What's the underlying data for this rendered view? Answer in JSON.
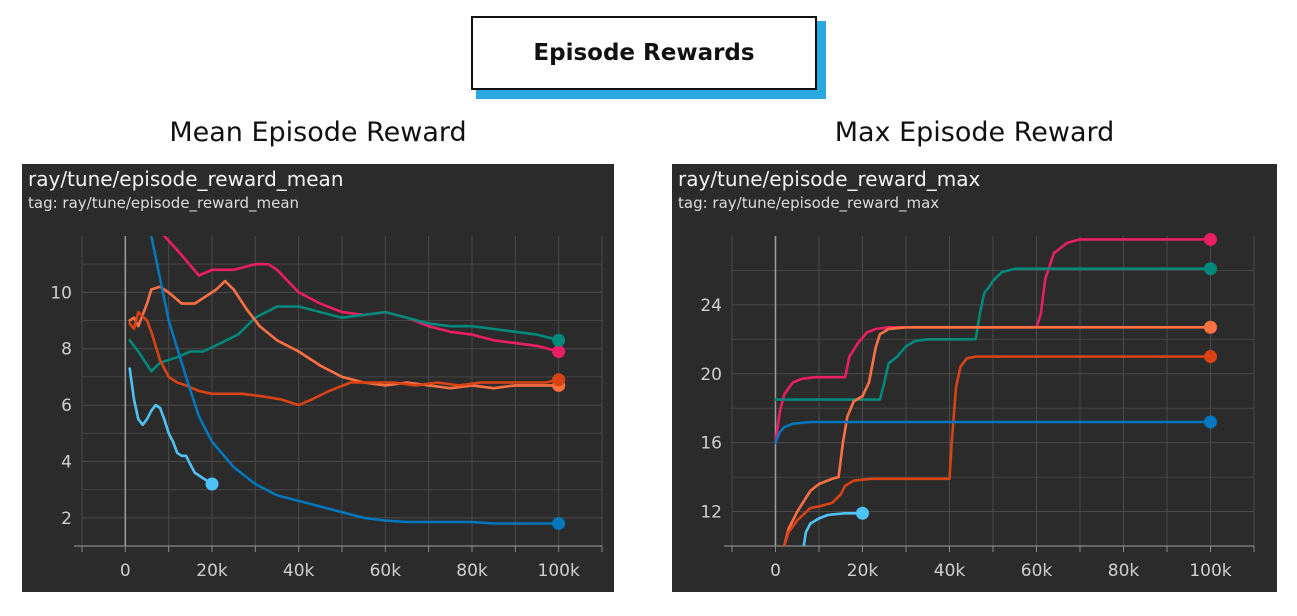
{
  "header": {
    "title": "Episode Rewards"
  },
  "charts": [
    {
      "subtitle": "Mean Episode Reward",
      "panel_title": "ray/tune/episode_reward_mean",
      "panel_tag": "tag: ray/tune/episode_reward_mean"
    },
    {
      "subtitle": "Max Episode Reward",
      "panel_title": "ray/tune/episode_reward_max",
      "panel_tag": "tag: ray/tune/episode_reward_max"
    }
  ],
  "chart_data": [
    {
      "type": "line",
      "title": "ray/tune/episode_reward_mean",
      "xlim": [
        -10000,
        110000
      ],
      "ylim": [
        1,
        12
      ],
      "xticks": [
        0,
        20000,
        40000,
        60000,
        80000,
        100000
      ],
      "xtick_labels": [
        "0",
        "20k",
        "40k",
        "60k",
        "80k",
        "100k"
      ],
      "yticks": [
        2,
        4,
        6,
        8,
        10
      ],
      "ytick_labels": [
        "2",
        "4",
        "6",
        "8",
        "10"
      ],
      "grid": true,
      "series": [
        {
          "color": "#e91e63",
          "x": [
            9000,
            12000,
            17000,
            20000,
            25000,
            30000,
            33000,
            35000,
            40000,
            45000,
            50000,
            55000,
            60000,
            65000,
            70000,
            75000,
            80000,
            85000,
            90000,
            95000,
            100000
          ],
          "y": [
            12,
            11.5,
            10.6,
            10.8,
            10.8,
            11,
            11,
            10.8,
            10,
            9.6,
            9.3,
            9.2,
            9.3,
            9.1,
            8.8,
            8.6,
            8.5,
            8.3,
            8.2,
            8.1,
            7.9
          ]
        },
        {
          "color": "#00897b",
          "x": [
            1000,
            3000,
            6000,
            8000,
            12000,
            15000,
            18000,
            22000,
            26000,
            30000,
            35000,
            40000,
            45000,
            50000,
            55000,
            60000,
            65000,
            70000,
            75000,
            80000,
            85000,
            90000,
            95000,
            100000
          ],
          "y": [
            8.3,
            7.9,
            7.2,
            7.5,
            7.7,
            7.9,
            7.9,
            8.2,
            8.5,
            9.1,
            9.5,
            9.5,
            9.3,
            9.1,
            9.2,
            9.3,
            9.1,
            8.9,
            8.8,
            8.8,
            8.7,
            8.6,
            8.5,
            8.3
          ]
        },
        {
          "color": "#ff7043",
          "x": [
            1000,
            2000,
            3000,
            5000,
            6000,
            8000,
            10000,
            13000,
            16000,
            19000,
            21000,
            23000,
            25000,
            28000,
            31000,
            35000,
            40000,
            45000,
            50000,
            55000,
            60000,
            65000,
            70000,
            75000,
            80000,
            85000,
            90000,
            95000,
            100000
          ],
          "y": [
            9,
            9.1,
            8.8,
            9.6,
            10.1,
            10.2,
            10.0,
            9.6,
            9.6,
            9.9,
            10.1,
            10.4,
            10.1,
            9.4,
            8.8,
            8.3,
            7.9,
            7.4,
            7.0,
            6.8,
            6.7,
            6.8,
            6.7,
            6.6,
            6.7,
            6.6,
            6.7,
            6.7,
            6.7
          ]
        },
        {
          "color": "#d84315",
          "x": [
            1000,
            2000,
            3000,
            5000,
            6000,
            8000,
            10000,
            12000,
            14000,
            17000,
            20000,
            23000,
            27000,
            32000,
            36000,
            40000,
            43000,
            47000,
            52000,
            57000,
            62000,
            67000,
            72000,
            77000,
            82000,
            87000,
            92000,
            97000,
            100000
          ],
          "y": [
            8.9,
            8.7,
            9.3,
            9.0,
            8.6,
            7.6,
            7.0,
            6.8,
            6.7,
            6.5,
            6.4,
            6.4,
            6.4,
            6.3,
            6.2,
            6.0,
            6.2,
            6.5,
            6.8,
            6.8,
            6.8,
            6.7,
            6.8,
            6.7,
            6.8,
            6.8,
            6.8,
            6.8,
            6.9
          ]
        },
        {
          "color": "#0277bd",
          "x": [
            6000,
            10000,
            14000,
            17000,
            20000,
            25000,
            30000,
            35000,
            40000,
            45000,
            50000,
            55000,
            60000,
            65000,
            70000,
            75000,
            80000,
            85000,
            90000,
            95000,
            100000
          ],
          "y": [
            12,
            9,
            7,
            5.6,
            4.7,
            3.8,
            3.2,
            2.8,
            2.6,
            2.4,
            2.2,
            2.0,
            1.9,
            1.85,
            1.85,
            1.85,
            1.85,
            1.8,
            1.8,
            1.8,
            1.8
          ]
        },
        {
          "color": "#4fc3f7",
          "x": [
            1000,
            2000,
            3000,
            4000,
            5000,
            6000,
            7000,
            8000,
            9000,
            10000,
            11000,
            12000,
            13000,
            14000,
            15000,
            16000,
            17000,
            18000,
            19000,
            20000
          ],
          "y": [
            7.3,
            6.2,
            5.5,
            5.3,
            5.5,
            5.8,
            6.0,
            5.9,
            5.5,
            5.0,
            4.7,
            4.3,
            4.2,
            4.2,
            3.9,
            3.6,
            3.5,
            3.4,
            3.3,
            3.2
          ]
        }
      ]
    },
    {
      "type": "line",
      "title": "ray/tune/episode_reward_max",
      "xlim": [
        -10000,
        110000
      ],
      "ylim": [
        10,
        28
      ],
      "xticks": [
        0,
        20000,
        40000,
        60000,
        80000,
        100000
      ],
      "xtick_labels": [
        "0",
        "20k",
        "40k",
        "60k",
        "80k",
        "100k"
      ],
      "yticks": [
        12,
        16,
        20,
        24
      ],
      "ytick_labels": [
        "12",
        "16",
        "20",
        "24"
      ],
      "grid": true,
      "series": [
        {
          "color": "#e91e63",
          "x": [
            0,
            1000,
            2000,
            4000,
            6000,
            9000,
            16000,
            17000,
            19000,
            21000,
            23000,
            26000,
            30000,
            40000,
            50000,
            60000,
            61000,
            62000,
            64000,
            67000,
            70000,
            80000,
            90000,
            100000
          ],
          "y": [
            16,
            17.8,
            18.8,
            19.5,
            19.7,
            19.8,
            19.8,
            21,
            21.8,
            22.4,
            22.6,
            22.7,
            22.7,
            22.7,
            22.7,
            22.7,
            23.5,
            25.5,
            27,
            27.6,
            27.8,
            27.8,
            27.8,
            27.8
          ]
        },
        {
          "color": "#00897b",
          "x": [
            0,
            10000,
            20000,
            24000,
            25000,
            26000,
            28000,
            30000,
            32000,
            35000,
            40000,
            46000,
            47000,
            48000,
            49000,
            50000,
            52000,
            55000,
            60000,
            70000,
            80000,
            90000,
            100000
          ],
          "y": [
            18.5,
            18.5,
            18.5,
            18.5,
            19.5,
            20.6,
            21.0,
            21.6,
            21.9,
            22.0,
            22.0,
            22.0,
            23.5,
            24.7,
            25.0,
            25.4,
            25.9,
            26.1,
            26.1,
            26.1,
            26.1,
            26.1,
            26.1
          ]
        },
        {
          "color": "#ff7043",
          "x": [
            2000,
            3000,
            5000,
            8000,
            10000,
            13000,
            14500,
            15500,
            16500,
            18000,
            20000,
            21500,
            23000,
            24000,
            26000,
            30000,
            40000,
            60000,
            80000,
            100000
          ],
          "y": [
            10,
            11,
            12.0,
            13.2,
            13.6,
            13.9,
            14.0,
            16,
            17.5,
            18.4,
            18.7,
            19.5,
            21.5,
            22.3,
            22.6,
            22.7,
            22.7,
            22.7,
            22.7,
            22.7
          ]
        },
        {
          "color": "#d84315",
          "x": [
            2000,
            3000,
            5000,
            8000,
            10000,
            13000,
            15000,
            16000,
            18000,
            22000,
            30000,
            40000,
            40500,
            41500,
            42500,
            44000,
            46000,
            50000,
            60000,
            70000,
            80000,
            90000,
            100000
          ],
          "y": [
            10,
            10.8,
            11.5,
            12.2,
            12.3,
            12.5,
            13.0,
            13.5,
            13.8,
            13.9,
            13.9,
            13.9,
            16,
            19.2,
            20.4,
            20.9,
            21.0,
            21.0,
            21.0,
            21.0,
            21.0,
            21.0,
            21.0
          ]
        },
        {
          "color": "#0277bd",
          "x": [
            0,
            1000,
            2000,
            4000,
            8000,
            20000,
            40000,
            60000,
            80000,
            100000
          ],
          "y": [
            16,
            16.6,
            16.9,
            17.1,
            17.2,
            17.2,
            17.2,
            17.2,
            17.2,
            17.2
          ]
        },
        {
          "color": "#4fc3f7",
          "x": [
            6500,
            7000,
            8000,
            10000,
            12000,
            14000,
            16000,
            18000,
            20000
          ],
          "y": [
            10,
            10.8,
            11.3,
            11.6,
            11.8,
            11.85,
            11.9,
            11.9,
            11.9
          ]
        }
      ]
    }
  ]
}
